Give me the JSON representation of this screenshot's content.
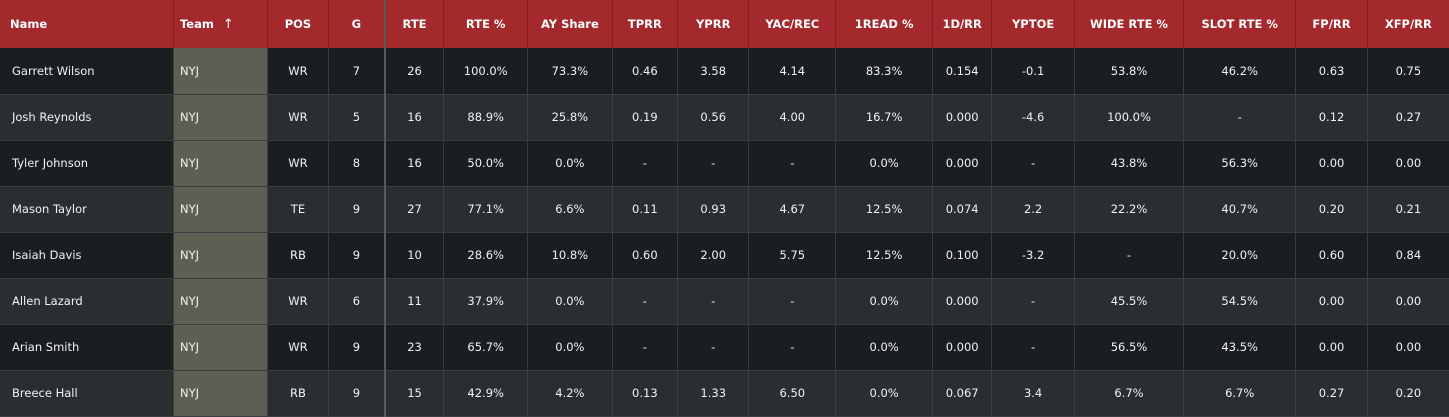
{
  "table": {
    "sorted_column": "team",
    "sort_direction": "ascending",
    "sort_icon": "arrow-up-icon",
    "columns": [
      {
        "key": "name",
        "label": "Name"
      },
      {
        "key": "team",
        "label": "Team"
      },
      {
        "key": "pos",
        "label": "POS"
      },
      {
        "key": "g",
        "label": "G"
      },
      {
        "key": "rte",
        "label": "RTE"
      },
      {
        "key": "rte_pct",
        "label": "RTE %"
      },
      {
        "key": "ay_share",
        "label": "AY Share"
      },
      {
        "key": "tprr",
        "label": "TPRR"
      },
      {
        "key": "yprr",
        "label": "YPRR"
      },
      {
        "key": "yac_rec",
        "label": "YAC/REC"
      },
      {
        "key": "read1_pct",
        "label": "1READ %"
      },
      {
        "key": "d1_rr",
        "label": "1D/RR"
      },
      {
        "key": "yptoe",
        "label": "YPTOE"
      },
      {
        "key": "wide_rte_pct",
        "label": "WIDE RTE %"
      },
      {
        "key": "slot_rte_pct",
        "label": "SLOT RTE %"
      },
      {
        "key": "fp_rr",
        "label": "FP/RR"
      },
      {
        "key": "xfp_rr",
        "label": "XFP/RR"
      }
    ],
    "rows": [
      [
        "Garrett Wilson",
        "NYJ",
        "WR",
        "7",
        "26",
        "100.0%",
        "73.3%",
        "0.46",
        "3.58",
        "4.14",
        "83.3%",
        "0.154",
        "-0.1",
        "53.8%",
        "46.2%",
        "0.63",
        "0.75"
      ],
      [
        "Josh Reynolds",
        "NYJ",
        "WR",
        "5",
        "16",
        "88.9%",
        "25.8%",
        "0.19",
        "0.56",
        "4.00",
        "16.7%",
        "0.000",
        "-4.6",
        "100.0%",
        "-",
        "0.12",
        "0.27"
      ],
      [
        "Tyler Johnson",
        "NYJ",
        "WR",
        "8",
        "16",
        "50.0%",
        "0.0%",
        "-",
        "-",
        "-",
        "0.0%",
        "0.000",
        "-",
        "43.8%",
        "56.3%",
        "0.00",
        "0.00"
      ],
      [
        "Mason Taylor",
        "NYJ",
        "TE",
        "9",
        "27",
        "77.1%",
        "6.6%",
        "0.11",
        "0.93",
        "4.67",
        "12.5%",
        "0.074",
        "2.2",
        "22.2%",
        "40.7%",
        "0.20",
        "0.21"
      ],
      [
        "Isaiah Davis",
        "NYJ",
        "RB",
        "9",
        "10",
        "28.6%",
        "10.8%",
        "0.60",
        "2.00",
        "5.75",
        "12.5%",
        "0.100",
        "-3.2",
        "-",
        "20.0%",
        "0.60",
        "0.84"
      ],
      [
        "Allen Lazard",
        "NYJ",
        "WR",
        "6",
        "11",
        "37.9%",
        "0.0%",
        "-",
        "-",
        "-",
        "0.0%",
        "0.000",
        "-",
        "45.5%",
        "54.5%",
        "0.00",
        "0.00"
      ],
      [
        "Arian Smith",
        "NYJ",
        "WR",
        "9",
        "23",
        "65.7%",
        "0.0%",
        "-",
        "-",
        "-",
        "0.0%",
        "0.000",
        "-",
        "56.5%",
        "43.5%",
        "0.00",
        "0.00"
      ],
      [
        "Breece Hall",
        "NYJ",
        "RB",
        "9",
        "15",
        "42.9%",
        "4.2%",
        "0.13",
        "1.33",
        "6.50",
        "0.0%",
        "0.067",
        "3.4",
        "6.7%",
        "6.7%",
        "0.27",
        "0.20"
      ]
    ]
  }
}
